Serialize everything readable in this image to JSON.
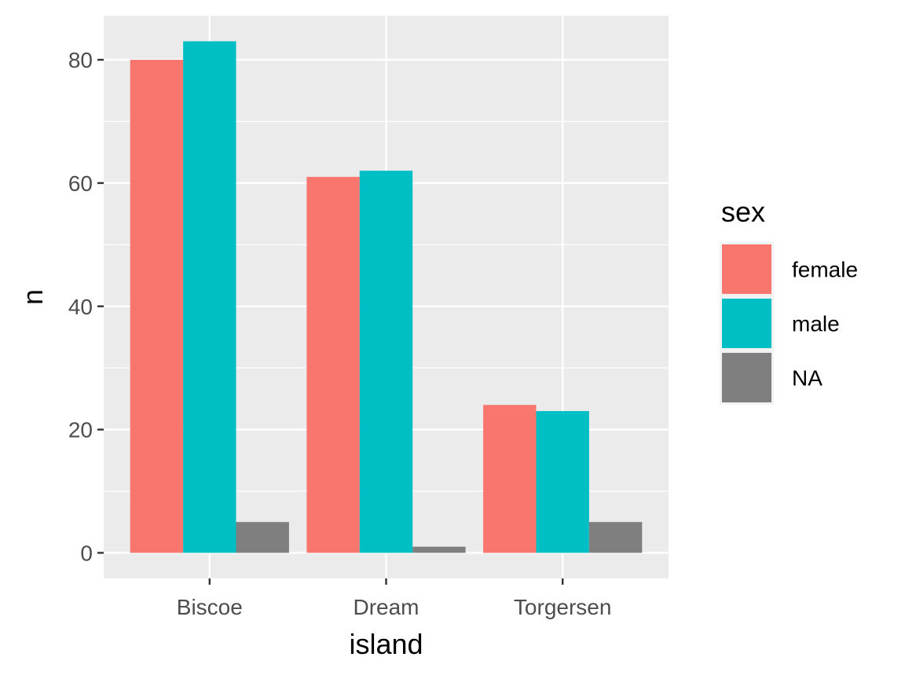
{
  "chart_data": {
    "type": "bar",
    "xlabel": "island",
    "ylabel": "n",
    "categories": [
      "Biscoe",
      "Dream",
      "Torgersen"
    ],
    "series": [
      {
        "name": "female",
        "color": "#F8766D",
        "values": [
          80,
          61,
          24
        ]
      },
      {
        "name": "male",
        "color": "#00BFC4",
        "values": [
          83,
          62,
          23
        ]
      },
      {
        "name": "NA",
        "color": "#7F7F7F",
        "values": [
          5,
          1,
          5
        ]
      }
    ],
    "ylim": [
      -4.15,
      87.15
    ],
    "yticks": [
      0,
      20,
      40,
      60,
      80
    ],
    "legend": {
      "title": "sex",
      "placement": "right"
    },
    "grid": true,
    "panel_background": "#EBEBEB",
    "grid_color": "#FFFFFF"
  }
}
